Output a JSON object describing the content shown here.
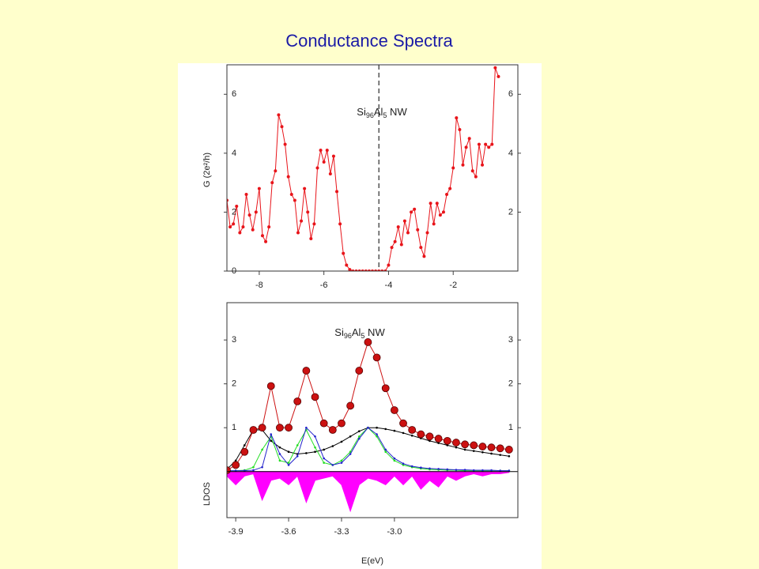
{
  "title": "Conductance Spectra",
  "chart_data": [
    {
      "type": "line",
      "ylabel": "G (2e²/h)",
      "annotation": [
        "Si",
        "96",
        "Al",
        "5",
        " NW"
      ],
      "xlim": [
        -9,
        0
      ],
      "xticks": [
        -8,
        -6,
        -4,
        -2
      ],
      "ylim": [
        0,
        7
      ],
      "yticks": [
        0,
        2,
        4,
        6
      ],
      "y2lim": [
        0,
        7
      ],
      "y2ticks": [
        2,
        4,
        6
      ],
      "vline": -4.3,
      "x": [
        -9.0,
        -8.9,
        -8.8,
        -8.7,
        -8.6,
        -8.5,
        -8.4,
        -8.3,
        -8.2,
        -8.1,
        -8.0,
        -7.9,
        -7.8,
        -7.7,
        -7.6,
        -7.5,
        -7.4,
        -7.3,
        -7.2,
        -7.1,
        -7.0,
        -6.9,
        -6.8,
        -6.7,
        -6.6,
        -6.5,
        -6.4,
        -6.3,
        -6.2,
        -6.1,
        -6.0,
        -5.9,
        -5.8,
        -5.7,
        -5.6,
        -5.5,
        -5.4,
        -5.3,
        -5.2,
        -5.1,
        -5.0,
        -4.9,
        -4.8,
        -4.7,
        -4.6,
        -4.5,
        -4.4,
        -4.3,
        -4.2,
        -4.1,
        -4.0,
        -3.9,
        -3.8,
        -3.7,
        -3.6,
        -3.5,
        -3.4,
        -3.3,
        -3.2,
        -3.1,
        -3.0,
        -2.9,
        -2.8,
        -2.7,
        -2.6,
        -2.5,
        -2.4,
        -2.3,
        -2.2,
        -2.1,
        -2.0,
        -1.9,
        -1.8,
        -1.7,
        -1.6,
        -1.5,
        -1.4,
        -1.3,
        -1.2,
        -1.1,
        -1.0,
        -0.9,
        -0.8,
        -0.7,
        -0.6
      ],
      "series": [
        {
          "color": "#e8141a",
          "marker": "small",
          "values": [
            2.4,
            1.5,
            1.6,
            2.2,
            1.3,
            1.5,
            2.6,
            1.9,
            1.4,
            2.0,
            2.8,
            1.2,
            1.0,
            1.5,
            3.0,
            3.4,
            5.3,
            4.9,
            4.3,
            3.2,
            2.6,
            2.4,
            1.3,
            1.7,
            2.8,
            2.0,
            1.1,
            1.6,
            3.5,
            4.1,
            3.7,
            4.1,
            3.3,
            3.9,
            2.7,
            1.6,
            0.6,
            0.2,
            0.05,
            0,
            0,
            0,
            0,
            0,
            0,
            0,
            0,
            0,
            0,
            0,
            0.2,
            0.8,
            1.0,
            1.5,
            0.9,
            1.7,
            1.3,
            2.0,
            2.1,
            1.4,
            0.8,
            0.5,
            1.3,
            2.3,
            1.6,
            2.3,
            1.9,
            2.0,
            2.6,
            2.8,
            3.5,
            5.2,
            4.8,
            3.6,
            4.2,
            4.5,
            3.4,
            3.2,
            4.3,
            3.6,
            4.3,
            4.2,
            4.3,
            6.9,
            6.6
          ]
        }
      ]
    },
    {
      "type": "line",
      "ylabel": "LDOS",
      "xlabel": "E(eV)",
      "annotation": [
        "Si",
        "96",
        "Al",
        "5",
        " NW"
      ],
      "xlim": [
        -3.95,
        -2.3
      ],
      "xticks": [
        -3.9,
        -3.6,
        -3.3,
        {
          "value": -3.0,
          "label": "-3.0"
        }
      ],
      "ylim": [
        -1.05,
        3.85
      ],
      "yticks": [
        1,
        2,
        3
      ],
      "y2lim": [
        -1.05,
        3.85
      ],
      "y2ticks": [
        1,
        2,
        3
      ],
      "x": [
        -3.95,
        -3.9,
        -3.85,
        -3.8,
        -3.75,
        -3.7,
        -3.65,
        -3.6,
        -3.55,
        -3.5,
        -3.45,
        -3.4,
        -3.35,
        -3.3,
        -3.25,
        -3.2,
        -3.15,
        -3.1,
        -3.05,
        -3.0,
        -2.95,
        -2.9,
        -2.85,
        -2.8,
        -2.75,
        -2.7,
        -2.65,
        -2.6,
        -2.55,
        -2.5,
        -2.45,
        -2.4,
        -2.35
      ],
      "series": [
        {
          "color": "#ff00ff",
          "area": true,
          "values": [
            -0.1,
            -0.3,
            -0.1,
            -0.05,
            -0.65,
            -0.2,
            -0.15,
            -0.3,
            -0.1,
            -0.7,
            -0.2,
            -0.15,
            -0.1,
            -0.3,
            -0.9,
            -0.3,
            -0.15,
            -0.2,
            -0.3,
            -0.1,
            -0.3,
            -0.1,
            -0.4,
            -0.2,
            -0.35,
            -0.1,
            -0.2,
            -0.1,
            -0.05,
            -0.1,
            -0.05,
            -0.05,
            -0.02
          ]
        },
        {
          "color": "#000000",
          "marker": "tiny",
          "values": [
            0.05,
            0.25,
            0.6,
            0.95,
            0.95,
            0.7,
            0.55,
            0.45,
            0.4,
            0.42,
            0.45,
            0.5,
            0.58,
            0.68,
            0.8,
            0.92,
            1.0,
            1.0,
            0.97,
            0.93,
            0.88,
            0.82,
            0.76,
            0.7,
            0.65,
            0.6,
            0.55,
            0.5,
            0.47,
            0.44,
            0.41,
            0.38,
            0.35
          ]
        },
        {
          "color": "#22dd22",
          "marker": "tiny",
          "values": [
            0.02,
            0.02,
            0.03,
            0.1,
            0.5,
            0.8,
            0.25,
            0.2,
            0.6,
            0.95,
            0.55,
            0.2,
            0.15,
            0.25,
            0.45,
            0.8,
            1.0,
            0.8,
            0.45,
            0.25,
            0.15,
            0.1,
            0.07,
            0.05,
            0.04,
            0.03,
            0.03,
            0.02,
            0.02,
            0.02,
            0.02,
            0.02,
            0.02
          ]
        },
        {
          "color": "#2222cc",
          "marker": "tiny",
          "values": [
            0.02,
            0.02,
            0.02,
            0.03,
            0.1,
            0.85,
            0.4,
            0.15,
            0.35,
            1.0,
            0.8,
            0.3,
            0.15,
            0.2,
            0.4,
            0.75,
            1.0,
            0.85,
            0.5,
            0.3,
            0.18,
            0.12,
            0.09,
            0.07,
            0.06,
            0.05,
            0.04,
            0.04,
            0.03,
            0.03,
            0.03,
            0.02,
            0.02
          ]
        },
        {
          "color": "#cc1111",
          "marker": "large",
          "values": [
            0.03,
            0.15,
            0.45,
            0.95,
            1.0,
            1.95,
            1.0,
            1.0,
            1.6,
            2.3,
            1.7,
            1.1,
            0.95,
            1.1,
            1.5,
            2.3,
            2.95,
            2.6,
            1.9,
            1.4,
            1.1,
            0.95,
            0.85,
            0.8,
            0.75,
            0.7,
            0.66,
            0.62,
            0.6,
            0.57,
            0.55,
            0.53,
            0.5
          ]
        }
      ]
    }
  ]
}
